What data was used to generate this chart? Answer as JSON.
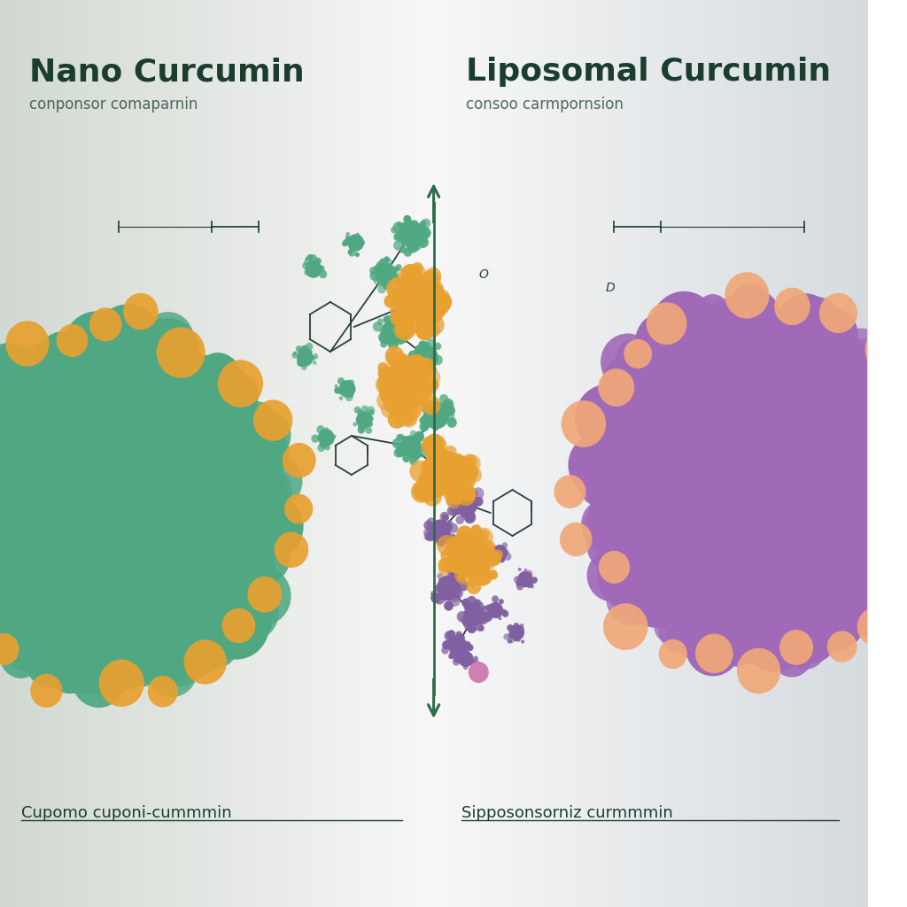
{
  "title_left": "Nano Curcumin",
  "subtitle_left": "conponsor comaparnin",
  "title_right": "Liposomal Curcumin",
  "subtitle_right": "consoo carmpornsion",
  "label_bottom_left": "Cupomo cuponi-cummmin",
  "label_bottom_right": "Sipposonsorniz curmmmin",
  "bg_color": "#e8ece8",
  "bg_center": "#f0f2f0",
  "nano_color": "#4fa882",
  "nano_color2": "#5db890",
  "nano_spike_color": "#e8a030",
  "lipo_color": "#a06ab8",
  "lipo_color2": "#b07ac8",
  "lipo_spike_color": "#f0a878",
  "lipo_spike_color2": "#e89060",
  "arrow_color": "#2d6b4a",
  "title_color": "#1a3d2e",
  "text_color": "#2a4a3a",
  "bond_color": "#2a4040",
  "mol_teal": "#4fa882",
  "mol_orange": "#e8a030",
  "mol_purple": "#8060a0",
  "mol_pink": "#d080b0"
}
